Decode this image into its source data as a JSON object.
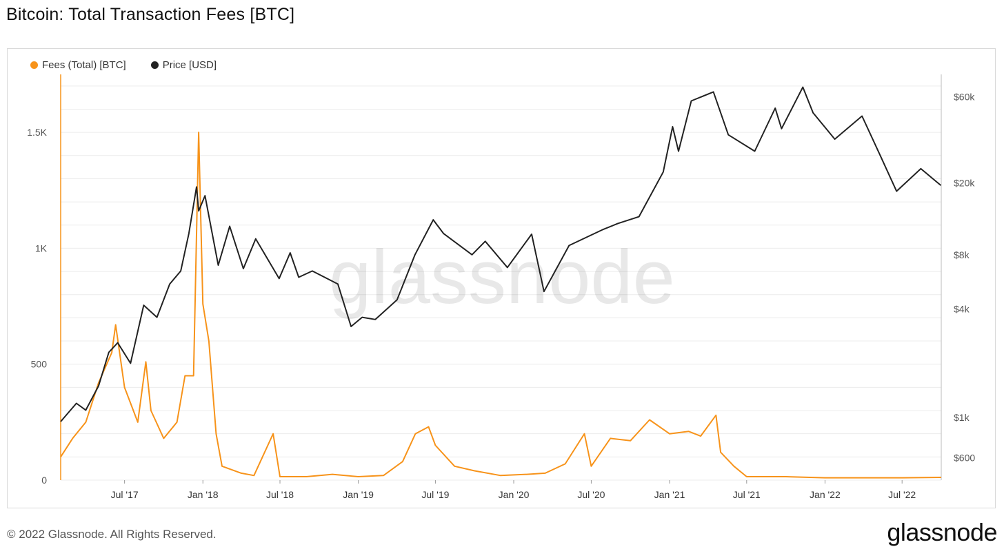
{
  "title": "Bitcoin: Total Transaction Fees [BTC]",
  "legend": [
    {
      "label": "Fees (Total) [BTC]",
      "color": "#f7931a"
    },
    {
      "label": "Price [USD]",
      "color": "#222222"
    }
  ],
  "footer": "© 2022 Glassnode. All Rights Reserved.",
  "brand": "glassnode",
  "watermark": "glassnode",
  "chart_data": {
    "type": "line",
    "title": "Bitcoin: Total Transaction Fees [BTC]",
    "x_range": [
      "2017-02-01",
      "2022-10-01"
    ],
    "x_ticks": [
      "Jul '17",
      "Jan '18",
      "Jul '18",
      "Jan '19",
      "Jul '19",
      "Jan '20",
      "Jul '20",
      "Jan '21",
      "Jul '21",
      "Jan '22",
      "Jul '22"
    ],
    "y_left": {
      "ticks": [
        "0",
        "500",
        "1K",
        "1.5K"
      ],
      "range": [
        0,
        1750
      ],
      "scale": "linear"
    },
    "y_right": {
      "ticks": [
        "$600",
        "$1k",
        "$4k",
        "$8k",
        "$20k",
        "$60k"
      ],
      "range": [
        450,
        80000
      ],
      "scale": "log"
    },
    "grid": true,
    "legend_position": "top-left",
    "series": [
      {
        "name": "Fees (Total) [BTC]",
        "color": "#f7931a",
        "axis": "left",
        "points": [
          [
            "2017-02-01",
            100
          ],
          [
            "2017-03-01",
            180
          ],
          [
            "2017-04-01",
            250
          ],
          [
            "2017-05-01",
            420
          ],
          [
            "2017-06-01",
            550
          ],
          [
            "2017-06-10",
            670
          ],
          [
            "2017-07-01",
            400
          ],
          [
            "2017-08-01",
            250
          ],
          [
            "2017-08-20",
            510
          ],
          [
            "2017-09-01",
            300
          ],
          [
            "2017-10-01",
            180
          ],
          [
            "2017-11-01",
            250
          ],
          [
            "2017-11-20",
            450
          ],
          [
            "2017-12-10",
            450
          ],
          [
            "2017-12-22",
            1500
          ],
          [
            "2018-01-01",
            760
          ],
          [
            "2018-01-15",
            600
          ],
          [
            "2018-02-01",
            200
          ],
          [
            "2018-02-15",
            60
          ],
          [
            "2018-04-01",
            30
          ],
          [
            "2018-05-01",
            20
          ],
          [
            "2018-06-15",
            200
          ],
          [
            "2018-07-01",
            15
          ],
          [
            "2018-09-01",
            15
          ],
          [
            "2018-11-01",
            25
          ],
          [
            "2019-01-01",
            15
          ],
          [
            "2019-03-01",
            20
          ],
          [
            "2019-04-15",
            80
          ],
          [
            "2019-05-15",
            200
          ],
          [
            "2019-06-15",
            230
          ],
          [
            "2019-07-01",
            150
          ],
          [
            "2019-08-15",
            60
          ],
          [
            "2019-10-01",
            40
          ],
          [
            "2019-12-01",
            20
          ],
          [
            "2020-02-01",
            25
          ],
          [
            "2020-03-15",
            30
          ],
          [
            "2020-05-01",
            70
          ],
          [
            "2020-06-15",
            200
          ],
          [
            "2020-07-01",
            60
          ],
          [
            "2020-08-15",
            180
          ],
          [
            "2020-10-01",
            170
          ],
          [
            "2020-11-15",
            260
          ],
          [
            "2021-01-01",
            200
          ],
          [
            "2021-02-15",
            210
          ],
          [
            "2021-03-15",
            190
          ],
          [
            "2021-04-20",
            280
          ],
          [
            "2021-05-01",
            120
          ],
          [
            "2021-06-01",
            60
          ],
          [
            "2021-07-01",
            15
          ],
          [
            "2021-10-01",
            15
          ],
          [
            "2022-01-01",
            10
          ],
          [
            "2022-04-01",
            10
          ],
          [
            "2022-07-01",
            10
          ],
          [
            "2022-10-01",
            12
          ]
        ]
      },
      {
        "name": "Price [USD]",
        "color": "#222222",
        "axis": "right",
        "points": [
          [
            "2017-02-01",
            950
          ],
          [
            "2017-03-10",
            1200
          ],
          [
            "2017-04-01",
            1100
          ],
          [
            "2017-05-01",
            1500
          ],
          [
            "2017-05-25",
            2300
          ],
          [
            "2017-06-15",
            2600
          ],
          [
            "2017-07-15",
            2000
          ],
          [
            "2017-08-15",
            4200
          ],
          [
            "2017-09-15",
            3600
          ],
          [
            "2017-10-15",
            5500
          ],
          [
            "2017-11-10",
            6500
          ],
          [
            "2017-11-29",
            10500
          ],
          [
            "2017-12-17",
            19000
          ],
          [
            "2017-12-22",
            14000
          ],
          [
            "2018-01-06",
            17000
          ],
          [
            "2018-02-06",
            7000
          ],
          [
            "2018-03-05",
            11500
          ],
          [
            "2018-04-06",
            6700
          ],
          [
            "2018-05-05",
            9800
          ],
          [
            "2018-06-29",
            5900
          ],
          [
            "2018-07-25",
            8200
          ],
          [
            "2018-08-14",
            6000
          ],
          [
            "2018-09-15",
            6500
          ],
          [
            "2018-11-14",
            5500
          ],
          [
            "2018-12-15",
            3200
          ],
          [
            "2019-01-10",
            3600
          ],
          [
            "2019-02-10",
            3500
          ],
          [
            "2019-04-02",
            4500
          ],
          [
            "2019-05-14",
            8000
          ],
          [
            "2019-06-26",
            12500
          ],
          [
            "2019-07-20",
            10500
          ],
          [
            "2019-09-25",
            8000
          ],
          [
            "2019-10-26",
            9500
          ],
          [
            "2019-12-17",
            6800
          ],
          [
            "2020-02-12",
            10400
          ],
          [
            "2020-03-12",
            5000
          ],
          [
            "2020-05-10",
            9000
          ],
          [
            "2020-07-27",
            11000
          ],
          [
            "2020-09-01",
            11900
          ],
          [
            "2020-10-21",
            13000
          ],
          [
            "2020-12-17",
            23000
          ],
          [
            "2021-01-08",
            41000
          ],
          [
            "2021-01-22",
            30000
          ],
          [
            "2021-02-21",
            57000
          ],
          [
            "2021-04-14",
            64000
          ],
          [
            "2021-05-19",
            37000
          ],
          [
            "2021-07-20",
            30000
          ],
          [
            "2021-09-06",
            52000
          ],
          [
            "2021-09-21",
            40000
          ],
          [
            "2021-11-10",
            68000
          ],
          [
            "2021-12-04",
            49000
          ],
          [
            "2022-01-24",
            35000
          ],
          [
            "2022-03-29",
            47000
          ],
          [
            "2022-05-12",
            28000
          ],
          [
            "2022-06-18",
            18000
          ],
          [
            "2022-08-14",
            24000
          ],
          [
            "2022-09-30",
            19400
          ]
        ]
      }
    ]
  }
}
